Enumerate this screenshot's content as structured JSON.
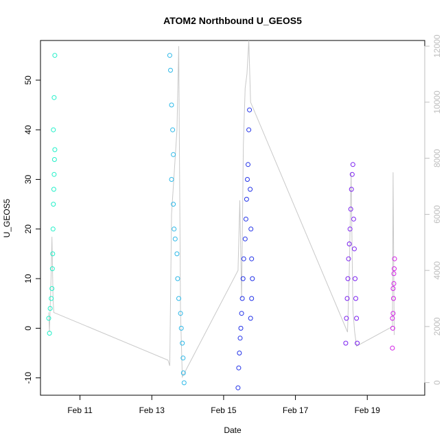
{
  "chart_data": {
    "type": "scatter",
    "title": "ATOM2 Northbound U_GEOS5",
    "xlabel": "Date",
    "ylabel": "U_GEOS5",
    "x_ticks": [
      "Feb 11",
      "Feb 13",
      "Feb 15",
      "Feb 17",
      "Feb 19"
    ],
    "x_tick_days": [
      11,
      13,
      15,
      17,
      19
    ],
    "xlim": [
      9.9,
      20.6
    ],
    "y_ticks": [
      -10,
      0,
      10,
      20,
      30,
      40,
      50
    ],
    "ylim": [
      -13.5,
      58
    ],
    "y2_ticks": [
      0,
      2000,
      4000,
      6000,
      8000,
      10000,
      12000
    ],
    "y2lim": [
      -450,
      12200
    ],
    "grid": false,
    "legend": "none",
    "colors": {
      "altitude_line": "#c8c8c8",
      "axis": "#000000",
      "right_axis": "#bdbdbd"
    },
    "altitude_trace": {
      "color": "#c8c8c8",
      "x": [
        10.13,
        10.15,
        10.2,
        10.22,
        10.25,
        10.27,
        13.45,
        13.5,
        13.55,
        13.7,
        13.75,
        13.8,
        13.85,
        15.4,
        15.45,
        15.5,
        15.55,
        15.6,
        15.65,
        15.7,
        15.75,
        18.45,
        18.5,
        18.55,
        18.6,
        18.65,
        18.7,
        19.7,
        19.72,
        19.75
      ],
      "y": [
        2500,
        1800,
        4000,
        5200,
        3000,
        2500,
        800,
        600,
        6000,
        9000,
        12000,
        2500,
        200,
        4000,
        6500,
        3000,
        8500,
        10500,
        11000,
        12200,
        10000,
        1800,
        4000,
        7500,
        2600,
        1800,
        1300,
        2000,
        7500,
        1700
      ]
    },
    "series": [
      {
        "color": "#1ef0c8",
        "points": [
          [
            10.13,
            2
          ],
          [
            10.15,
            -1
          ],
          [
            10.17,
            4
          ],
          [
            10.2,
            6
          ],
          [
            10.22,
            8
          ],
          [
            10.23,
            12
          ],
          [
            10.24,
            15
          ],
          [
            10.25,
            20
          ],
          [
            10.26,
            25
          ],
          [
            10.27,
            28
          ],
          [
            10.28,
            31
          ],
          [
            10.29,
            34
          ],
          [
            10.3,
            36
          ],
          [
            10.26,
            40
          ],
          [
            10.28,
            46.5
          ],
          [
            10.3,
            55
          ]
        ]
      },
      {
        "color": "#2bb8e8",
        "points": [
          [
            13.5,
            55
          ],
          [
            13.52,
            52
          ],
          [
            13.55,
            45
          ],
          [
            13.58,
            40
          ],
          [
            13.6,
            35
          ],
          [
            13.55,
            30
          ],
          [
            13.6,
            25
          ],
          [
            13.62,
            20
          ],
          [
            13.65,
            18
          ],
          [
            13.7,
            15
          ],
          [
            13.72,
            10
          ],
          [
            13.75,
            6
          ],
          [
            13.8,
            3
          ],
          [
            13.82,
            0
          ],
          [
            13.85,
            -3
          ],
          [
            13.87,
            -6
          ],
          [
            13.88,
            -9
          ],
          [
            13.9,
            -11
          ]
        ]
      },
      {
        "color": "#2030e8",
        "points": [
          [
            15.4,
            -12
          ],
          [
            15.42,
            -8
          ],
          [
            15.44,
            -5
          ],
          [
            15.46,
            -2
          ],
          [
            15.48,
            0
          ],
          [
            15.5,
            3
          ],
          [
            15.52,
            6
          ],
          [
            15.54,
            10
          ],
          [
            15.56,
            14
          ],
          [
            15.6,
            18
          ],
          [
            15.62,
            22
          ],
          [
            15.64,
            26
          ],
          [
            15.66,
            30
          ],
          [
            15.68,
            33
          ],
          [
            15.7,
            40
          ],
          [
            15.72,
            44
          ],
          [
            15.74,
            28
          ],
          [
            15.76,
            20
          ],
          [
            15.78,
            14
          ],
          [
            15.8,
            10
          ],
          [
            15.78,
            6
          ],
          [
            15.75,
            2
          ]
        ]
      },
      {
        "color": "#7a1ef0",
        "points": [
          [
            18.4,
            -3
          ],
          [
            18.42,
            2
          ],
          [
            18.44,
            6
          ],
          [
            18.46,
            10
          ],
          [
            18.48,
            14
          ],
          [
            18.5,
            17
          ],
          [
            18.52,
            20
          ],
          [
            18.54,
            24
          ],
          [
            18.56,
            28
          ],
          [
            18.58,
            31
          ],
          [
            18.6,
            33
          ],
          [
            18.62,
            22
          ],
          [
            18.64,
            16
          ],
          [
            18.66,
            10
          ],
          [
            18.68,
            6
          ],
          [
            18.7,
            2
          ],
          [
            18.72,
            -3
          ]
        ]
      },
      {
        "color": "#d21ee6",
        "points": [
          [
            19.7,
            -4
          ],
          [
            19.71,
            0
          ],
          [
            19.72,
            3
          ],
          [
            19.73,
            6
          ],
          [
            19.74,
            9
          ],
          [
            19.75,
            12
          ],
          [
            19.76,
            14
          ],
          [
            19.74,
            11
          ],
          [
            19.72,
            8
          ],
          [
            19.7,
            2
          ]
        ]
      }
    ]
  }
}
